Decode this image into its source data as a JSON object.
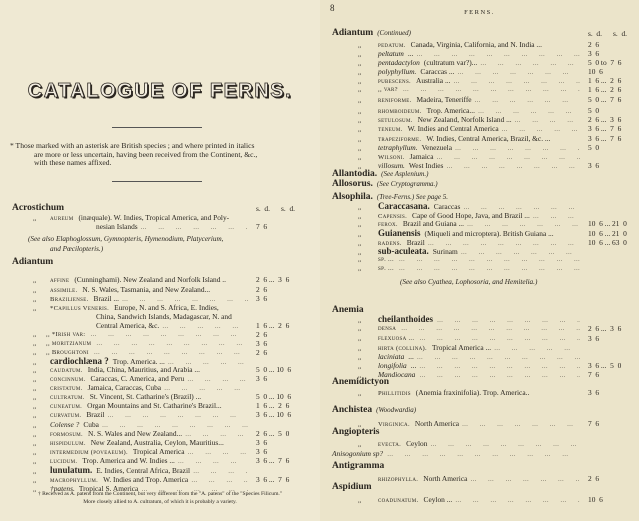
{
  "left_page": {
    "title": "CATALOGUE OF FERNS.",
    "intro_line1": "* Those marked with an asterisk are British species ; and where printed in italics",
    "intro_line2": "are more or less uncertain, having been received from the Continent, &c.,",
    "intro_line3": "with these names affixed.",
    "rows": [
      {
        "type": "head",
        "text": "Acrostichum",
        "price": "s.  d.      s.  d."
      },
      {
        "type": "entry",
        "mark": ",,",
        "name": "aureum",
        "style": "sc",
        "desc": "(inæquale).   W. Indies, Tropical America, and Poly-",
        "dots": false
      },
      {
        "type": "cont",
        "desc": "nesian Islands",
        "dots": true,
        "price": "7  6"
      },
      {
        "type": "note",
        "text": "(See also Elaphoglossum, Gymnopteris, Hymenodium, Platycerium,"
      },
      {
        "type": "note2",
        "text": "and Pœcilopteris.)"
      },
      {
        "type": "head",
        "text": "Adiantum"
      },
      {
        "type": "entry",
        "mark": ",,",
        "name": "affine",
        "style": "sc",
        "desc": "(Cunninghami).   New Zealand and Norfolk Island ..",
        "dots": false,
        "price": "2  6 ...  3  6"
      },
      {
        "type": "entry",
        "mark": ",,",
        "name": "assimile.",
        "style": "sc",
        "desc": "N. S. Wales, Tasmania, and New Zealand...",
        "dots": false,
        "price": "2  6"
      },
      {
        "type": "entry",
        "mark": ",,",
        "name": "Braziliense.",
        "style": "sc",
        "desc": "Brazil ...",
        "dots": true,
        "price": "3  6"
      },
      {
        "type": "entry",
        "mark": ",,",
        "name": "*Capillus Veneris.",
        "style": "sc",
        "desc": "Europe, N. and S. Africa, E. Indies,",
        "dots": false
      },
      {
        "type": "cont",
        "desc": "China, Sandwich Islands, Madagascar, N. and",
        "dots": false
      },
      {
        "type": "cont",
        "desc": "Central America, &c.",
        "dots": true,
        "price": "1  6 ...  2  6"
      },
      {
        "type": "sub",
        "mark": ",,",
        "name": ",,  *Irish var:",
        "style": "sc",
        "dots": true,
        "price": "2  6"
      },
      {
        "type": "sub",
        "mark": ",,",
        "name": ",,  moritzianum",
        "style": "sc",
        "dots": true,
        "price": "3  6"
      },
      {
        "type": "sub",
        "mark": ",,",
        "name": ",,  Broughtoni",
        "style": "sc",
        "dots": true,
        "price": "2  6"
      },
      {
        "type": "entry",
        "mark": ",,",
        "name": "cardiochlæna ?",
        "style": "bold",
        "desc": "Trop. America.  ...",
        "dots": true
      },
      {
        "type": "entry",
        "mark": ",,",
        "name": "caudatum.",
        "style": "sc",
        "desc": "India, China, Mauritius, and Arabia ...",
        "dots": false,
        "price": "5  0 ... 10  6"
      },
      {
        "type": "entry",
        "mark": ",,",
        "name": "concinnum.",
        "style": "sc",
        "desc": "Caraccas, C. America, and Peru",
        "dots": true,
        "price": "3  6"
      },
      {
        "type": "entry",
        "mark": ",,",
        "name": "cristatum.",
        "style": "sc",
        "desc": "Jamaica, Caraccas, Cuba",
        "dots": true
      },
      {
        "type": "entry",
        "mark": ",,",
        "name": "cultratum.",
        "style": "sc",
        "desc": "St. Vincent, St. Catharine's (Brazil) ...",
        "dots": false,
        "price": "5  0 ... 10  6"
      },
      {
        "type": "entry",
        "mark": ",,",
        "name": "cuneatum.",
        "style": "sc",
        "desc": "Organ Mountains and St. Catharine's Brazil...",
        "dots": false,
        "price": "1  6 ...  2  6"
      },
      {
        "type": "entry",
        "mark": ",,",
        "name": "curvatum.",
        "style": "sc",
        "desc": "Brazil",
        "dots": true,
        "price": "3  6 ... 10  6"
      },
      {
        "type": "entry",
        "mark": ",,",
        "name": "Colense ?",
        "style": "it",
        "desc": "Cuba",
        "dots": true
      },
      {
        "type": "entry",
        "mark": ",,",
        "name": "formosum.",
        "style": "sc",
        "desc": "N. S. Wales and New Zealand...",
        "dots": true,
        "price": "2  6 ...  5  0"
      },
      {
        "type": "entry",
        "mark": ",,",
        "name": "hispidulum.",
        "style": "sc",
        "desc": "New Zealand, Australia, Ceylon, Mauritius...",
        "dots": false,
        "price": "3  6"
      },
      {
        "type": "entry",
        "mark": ",,",
        "name": "intermedium (poveaeum).",
        "style": "sc",
        "desc": "Tropical America",
        "dots": true,
        "price": "3  6"
      },
      {
        "type": "entry",
        "mark": ",,",
        "name": "lucidum.",
        "style": "sc",
        "desc": "Trop. America and W. Indies ...",
        "dots": true,
        "price": "3  6 ...  7  6"
      },
      {
        "type": "entry",
        "mark": ",,",
        "name": "lunulatum.",
        "style": "bold",
        "desc": "E. Indies, Central Africa, Brazil",
        "dots": true
      },
      {
        "type": "entry",
        "mark": ",,",
        "name": "macrophyllum.",
        "style": "sc",
        "desc": "W. Indies and Trop. America",
        "dots": true,
        "price": "3  6 ...  7  6"
      },
      {
        "type": "entry",
        "mark": ",,",
        "name": "†patens.",
        "style": "it",
        "desc": "Tropical S. America",
        "dots": true
      }
    ],
    "footnote_line1": "† Received as A. patens from the Continent, but very different from the \"A. patens\" of the \"Species Filicum.\"",
    "footnote_line2": "More closely allied to A. cultratum, of which it is probably a variety."
  },
  "right_page": {
    "page_number": "8",
    "running_head": "FERNS.",
    "rows": [
      {
        "type": "head",
        "text": "Adiantum",
        "note": "(Continued)",
        "price": "s.  d.      s.  d."
      },
      {
        "type": "entry",
        "mark": ",,",
        "name": "pedatum.",
        "style": "sc",
        "desc": "Canada, Virginia, California, and N. India ...",
        "dots": false,
        "price": "2  6"
      },
      {
        "type": "entry",
        "mark": ",,",
        "name": "peltatum",
        "style": "it",
        "desc": "...",
        "dots": true,
        "price": "3  6"
      },
      {
        "type": "entry",
        "mark": ",,",
        "name": "pentadactylon",
        "style": "it",
        "desc": "(cultratum var?)...",
        "dots": true,
        "price": "5  0 to  7  6"
      },
      {
        "type": "entry",
        "mark": ",,",
        "name": "polyphyllum.",
        "style": "it",
        "desc": "Caraccas ...",
        "dots": true,
        "price": "10  6"
      },
      {
        "type": "entry",
        "mark": ",,",
        "name": "pubescens.",
        "style": "sc",
        "desc": "Australia ...",
        "dots": true,
        "price": "1  6 ...  2  6"
      },
      {
        "type": "entry",
        "mark": ",,",
        "name": ",,   var?",
        "style": "sc",
        "desc": "",
        "dots": true,
        "price": "1  6 ...  2  6"
      },
      {
        "type": "entry",
        "mark": ",,",
        "name": "reniforme.",
        "style": "sc",
        "desc": "Madeira, Teneriffe",
        "dots": true,
        "price": "5  0 ...  7  6"
      },
      {
        "type": "entry",
        "mark": ",,",
        "name": "rhomboideum.",
        "style": "sc",
        "desc": "Trop. America...",
        "dots": true,
        "price": "5  0"
      },
      {
        "type": "entry",
        "mark": ",,",
        "name": "setulosum.",
        "style": "sc",
        "desc": "New Zealand, Norfolk Island ...",
        "dots": true,
        "price": "2  6 ...  3  6"
      },
      {
        "type": "entry",
        "mark": ",,",
        "name": "teneum.",
        "style": "sc",
        "desc": "W. Indies and Central America",
        "dots": true,
        "price": "3  6 ...  7  6"
      },
      {
        "type": "entry",
        "mark": ",,",
        "name": "trapeziforme.",
        "style": "sc",
        "desc": "W. Indies, Central America, Brazil, &c. ...",
        "dots": false,
        "price": "3  6 ...  7  6"
      },
      {
        "type": "entry",
        "mark": ",,",
        "name": "tetraphyllum.",
        "style": "it",
        "desc": "Venezuela",
        "dots": true,
        "price": "5  0"
      },
      {
        "type": "entry",
        "mark": ",,",
        "name": "Wilsoni.",
        "style": "sc",
        "desc": "Jamaica",
        "dots": true
      },
      {
        "type": "entry",
        "mark": ",,",
        "name": "villosum.",
        "style": "it",
        "desc": "West Indies",
        "dots": true,
        "price": "3  6"
      },
      {
        "type": "head",
        "text": "Allantodia.",
        "note": "(See Asplenium.)"
      },
      {
        "type": "head",
        "text": "Allosorus.",
        "note": "(See Cryptogramma.)"
      },
      {
        "type": "head",
        "text": "Alsophila.",
        "note": "(Tree-Ferns.)  See page 5."
      },
      {
        "type": "entry",
        "mark": ",,",
        "name": "Caraccasana.",
        "style": "bold",
        "desc": "Caraccas",
        "dots": true
      },
      {
        "type": "entry",
        "mark": ",,",
        "name": "Capensis.",
        "style": "sc",
        "desc": "Cape of Good Hope, Java, and Brazil ...",
        "dots": true
      },
      {
        "type": "entry",
        "mark": ",,",
        "name": "ferox.",
        "style": "sc",
        "desc": "Brazil and Guiana ...",
        "dots": true,
        "price": "10  6 ... 21  0"
      },
      {
        "type": "entry",
        "mark": ",,",
        "name": "Guianensis",
        "style": "bold",
        "desc": "(Miqueli and micropterа).  British Guiana ...",
        "dots": false,
        "price": "10  6 ... 21  0"
      },
      {
        "type": "entry",
        "mark": ",,",
        "name": "radens.",
        "style": "sc",
        "desc": "Brazil",
        "dots": true,
        "price": "10  6 ... 63  0"
      },
      {
        "type": "entry",
        "mark": ",,",
        "name": "sub-aculeata.",
        "style": "bold",
        "desc": "Surinam",
        "dots": true
      },
      {
        "type": "entry",
        "mark": ",,",
        "name": "sp. ...",
        "style": "sc",
        "desc": "",
        "dots": true
      },
      {
        "type": "entry",
        "mark": ",,",
        "name": "sp. ...",
        "style": "sc",
        "desc": "",
        "dots": true
      },
      {
        "type": "note",
        "text": "(See also Cyathea, Lophosoria, and Hemitelia.)"
      },
      {
        "type": "head",
        "text": "Anemia"
      },
      {
        "type": "entry",
        "mark": ",,",
        "name": "cheilanthoides",
        "style": "bold",
        "desc": "",
        "dots": true
      },
      {
        "type": "entry",
        "mark": ",,",
        "name": "densa",
        "style": "sc",
        "desc": "",
        "dots": true,
        "price": "2  6 ...  3  6"
      },
      {
        "type": "entry",
        "mark": ",,",
        "name": "flexuosa ...",
        "style": "sc",
        "desc": "",
        "dots": true,
        "price": "3  6"
      },
      {
        "type": "entry",
        "mark": ",,",
        "name": "hirta (collina).",
        "style": "sc",
        "desc": "Tropical America ...",
        "dots": true
      },
      {
        "type": "entry",
        "mark": ",,",
        "name": "laciniata",
        "style": "it",
        "desc": "...",
        "dots": true
      },
      {
        "type": "entry",
        "mark": ",,",
        "name": "longifolia",
        "style": "it",
        "desc": "...",
        "dots": true,
        "price": "3  6 ...  5  0"
      },
      {
        "type": "entry",
        "mark": ",,",
        "name": "Mandiocana",
        "style": "it",
        "desc": "",
        "dots": true,
        "price": "7  6"
      },
      {
        "type": "head",
        "text": "Anemidictyon"
      },
      {
        "type": "entry",
        "mark": ",,",
        "name": "Phillitidis",
        "style": "sc",
        "desc": "(Anemia fraxinifolia).  Trop. America..",
        "dots": false,
        "price": "3  6"
      },
      {
        "type": "head",
        "text": "Anchistea",
        "note": "(Woodwardia)"
      },
      {
        "type": "entry",
        "mark": ",,",
        "name": "Virginica.",
        "style": "sc",
        "desc": "North America",
        "dots": true,
        "price": "7  6"
      },
      {
        "type": "head",
        "text": "Angiopteris"
      },
      {
        "type": "entry",
        "mark": ",,",
        "name": "evecta.",
        "style": "sc",
        "desc": "Ceylon",
        "dots": true
      },
      {
        "type": "plain",
        "name": "Anisogonium sp?",
        "style": "it",
        "dots": true
      },
      {
        "type": "head",
        "text": "Antigramma"
      },
      {
        "type": "entry",
        "mark": "",
        "name": "rhizophylla.",
        "style": "sc",
        "desc": "North America",
        "dots": true,
        "price": "2  6"
      },
      {
        "type": "head",
        "text": "Aspidium"
      },
      {
        "type": "entry",
        "mark": ",,",
        "name": "coadunatum.",
        "style": "sc",
        "desc": "Ceylon ...",
        "dots": true,
        "price": "10  6"
      }
    ]
  }
}
